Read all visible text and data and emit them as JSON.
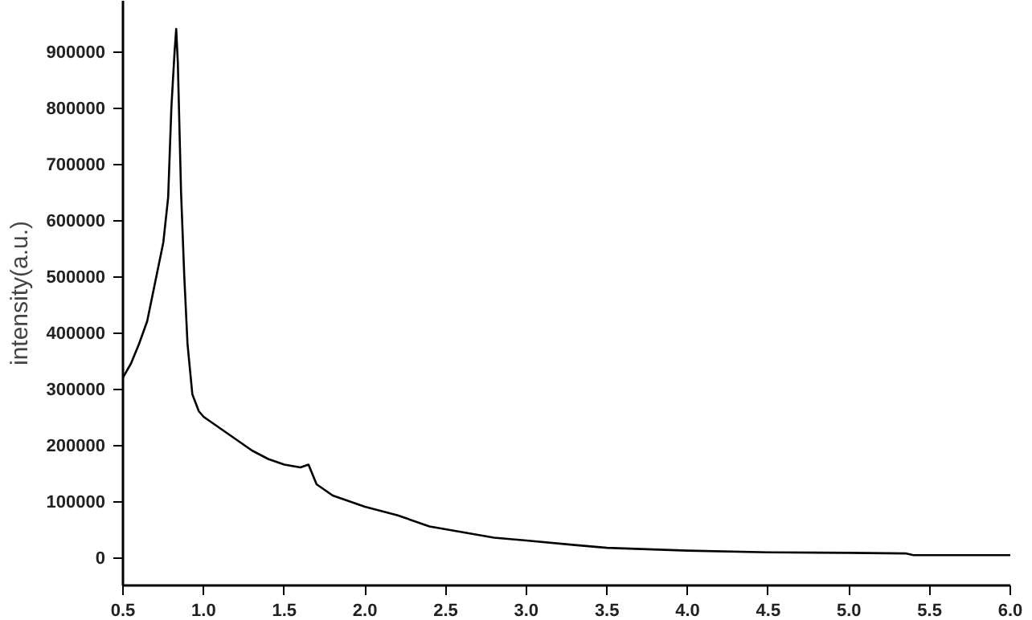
{
  "chart_data": {
    "type": "line",
    "ylabel": "intensity(a.u.)",
    "x": [
      0.5,
      0.55,
      0.6,
      0.65,
      0.7,
      0.75,
      0.78,
      0.8,
      0.82,
      0.83,
      0.84,
      0.86,
      0.88,
      0.9,
      0.93,
      0.97,
      1.0,
      1.1,
      1.2,
      1.3,
      1.4,
      1.5,
      1.6,
      1.65,
      1.7,
      1.8,
      2.0,
      2.2,
      2.4,
      2.6,
      2.8,
      3.0,
      3.3,
      3.5,
      4.0,
      4.5,
      5.0,
      5.35,
      5.4,
      6.0
    ],
    "series": [
      {
        "color": "#000000",
        "values": [
          320000,
          345000,
          380000,
          420000,
          490000,
          560000,
          640000,
          800000,
          900000,
          940000,
          880000,
          650000,
          500000,
          380000,
          290000,
          260000,
          250000,
          230000,
          210000,
          190000,
          175000,
          165000,
          160000,
          165000,
          130000,
          110000,
          90000,
          75000,
          55000,
          45000,
          35000,
          30000,
          22000,
          17000,
          12000,
          9000,
          8000,
          7000,
          4000,
          4000
        ]
      }
    ],
    "xlim": [
      0.5,
      6.0
    ],
    "ylim": [
      -50000,
      990000
    ],
    "xticks": [
      {
        "value": 0.5,
        "label": "0.5"
      },
      {
        "value": 1.0,
        "label": "1.0"
      },
      {
        "value": 1.5,
        "label": "1.5"
      },
      {
        "value": 2.0,
        "label": "2.0"
      },
      {
        "value": 2.5,
        "label": "2.5"
      },
      {
        "value": 3.0,
        "label": "3.0"
      },
      {
        "value": 3.5,
        "label": "3.5"
      },
      {
        "value": 4.0,
        "label": "4.0"
      },
      {
        "value": 4.5,
        "label": "4.5"
      },
      {
        "value": 5.0,
        "label": "5.0"
      },
      {
        "value": 5.5,
        "label": "5.5"
      },
      {
        "value": 6.0,
        "label": "6.0"
      }
    ],
    "yticks": [
      0,
      100000,
      200000,
      300000,
      400000,
      500000,
      600000,
      700000,
      800000,
      900000
    ],
    "grid": false,
    "marker": "none",
    "line_style": "solid"
  }
}
